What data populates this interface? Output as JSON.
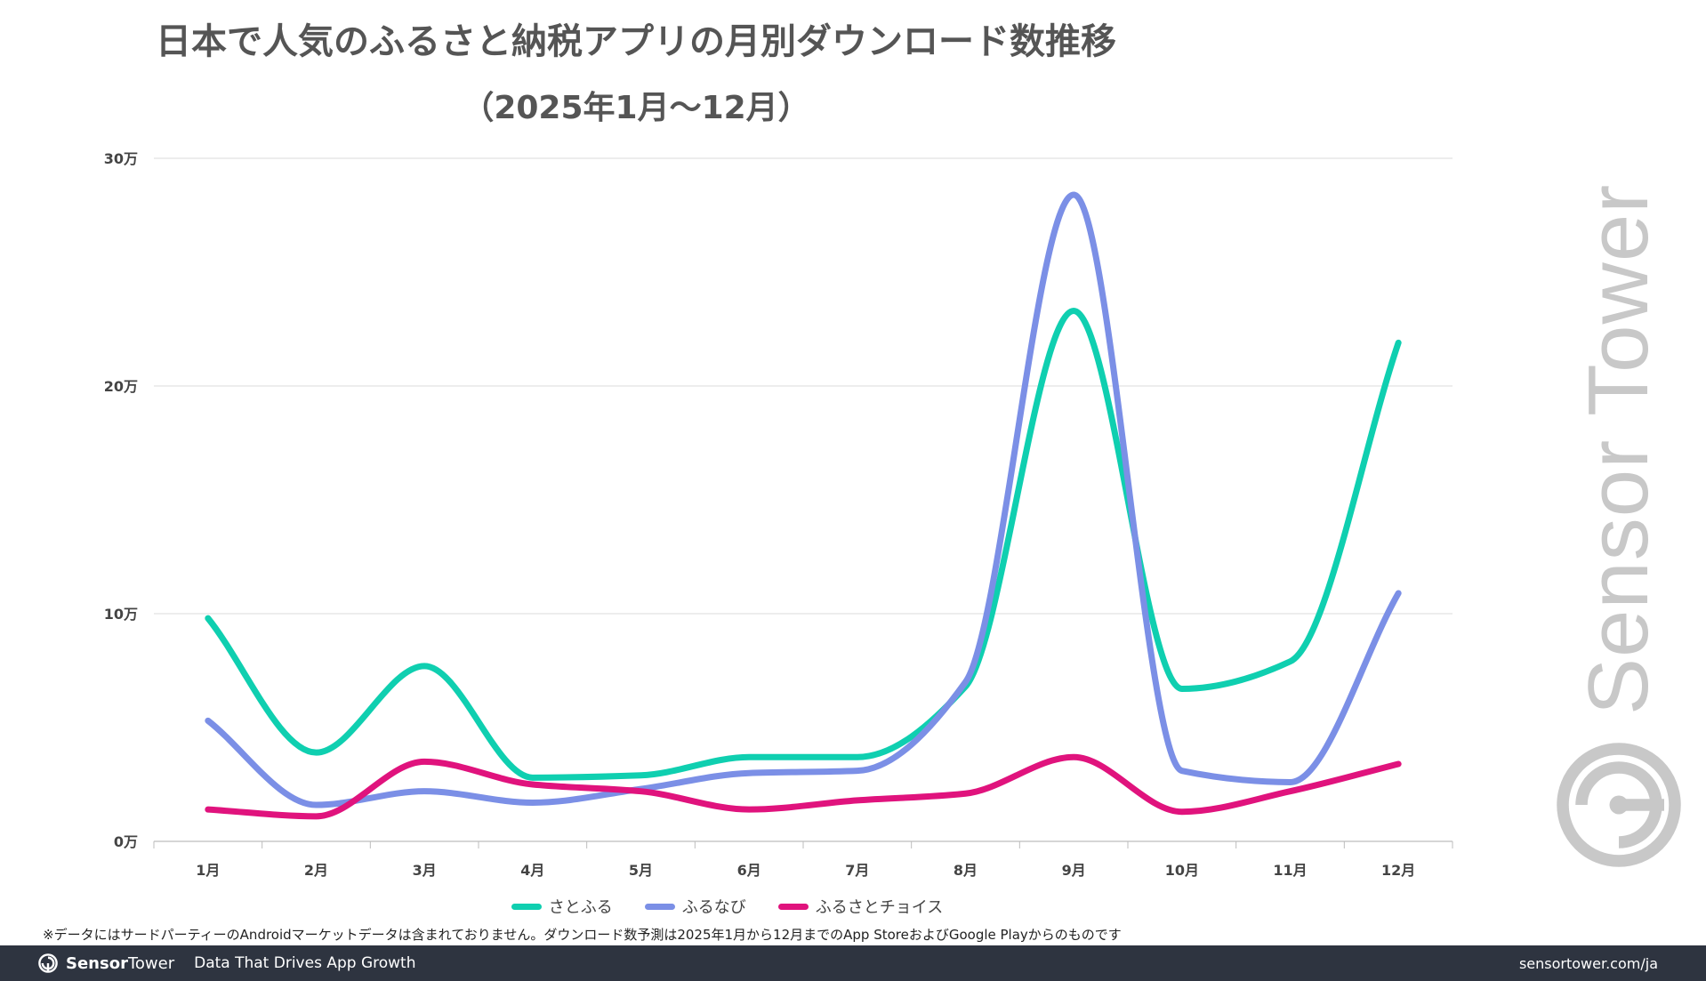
{
  "title": "日本で人気のふるさと納税アプリの月別ダウンロード数推移",
  "subtitle": "（2025年1月〜12月）",
  "watermark": "Sensor Tower",
  "footnote": "※データにはサードパーティーのAndroidマーケットデータは含まれておりません。ダウンロード数予測は2025年1月から12月までのApp StoreおよびGoogle Playからのものです",
  "footer": {
    "brand_bold": "Sensor",
    "brand_regular": "Tower",
    "tagline": "Data That Drives App Growth",
    "url": "sensortower.com/ja"
  },
  "chart_data": {
    "type": "line",
    "title": "日本で人気のふるさと納税アプリの月別ダウンロード数推移",
    "subtitle": "（2025年1月〜12月）",
    "xlabel": "",
    "ylabel": "",
    "categories": [
      "1月",
      "2月",
      "3月",
      "4月",
      "5月",
      "6月",
      "7月",
      "8月",
      "9月",
      "10月",
      "11月",
      "12月"
    ],
    "y_ticks": [
      0,
      10,
      20,
      30
    ],
    "y_tick_labels": [
      "0万",
      "10万",
      "20万",
      "30万"
    ],
    "ylim": [
      0,
      30
    ],
    "y_unit": "万",
    "grid": "horizontal",
    "legend_position": "bottom",
    "series": [
      {
        "name": "さとふる",
        "color": "#0fcfb0",
        "values": [
          9.8,
          3.9,
          7.7,
          2.8,
          2.9,
          3.7,
          3.7,
          6.8,
          23.3,
          6.7,
          7.9,
          21.9
        ]
      },
      {
        "name": "ふるなび",
        "color": "#7b8fe6",
        "values": [
          5.3,
          1.6,
          2.2,
          1.7,
          2.3,
          3.0,
          3.1,
          7.0,
          28.4,
          3.1,
          2.6,
          10.9
        ]
      },
      {
        "name": "ふるさとチョイス",
        "color": "#e0137d",
        "values": [
          1.4,
          1.1,
          3.5,
          2.5,
          2.2,
          1.4,
          1.8,
          2.1,
          3.7,
          1.3,
          2.2,
          3.4
        ]
      }
    ]
  }
}
